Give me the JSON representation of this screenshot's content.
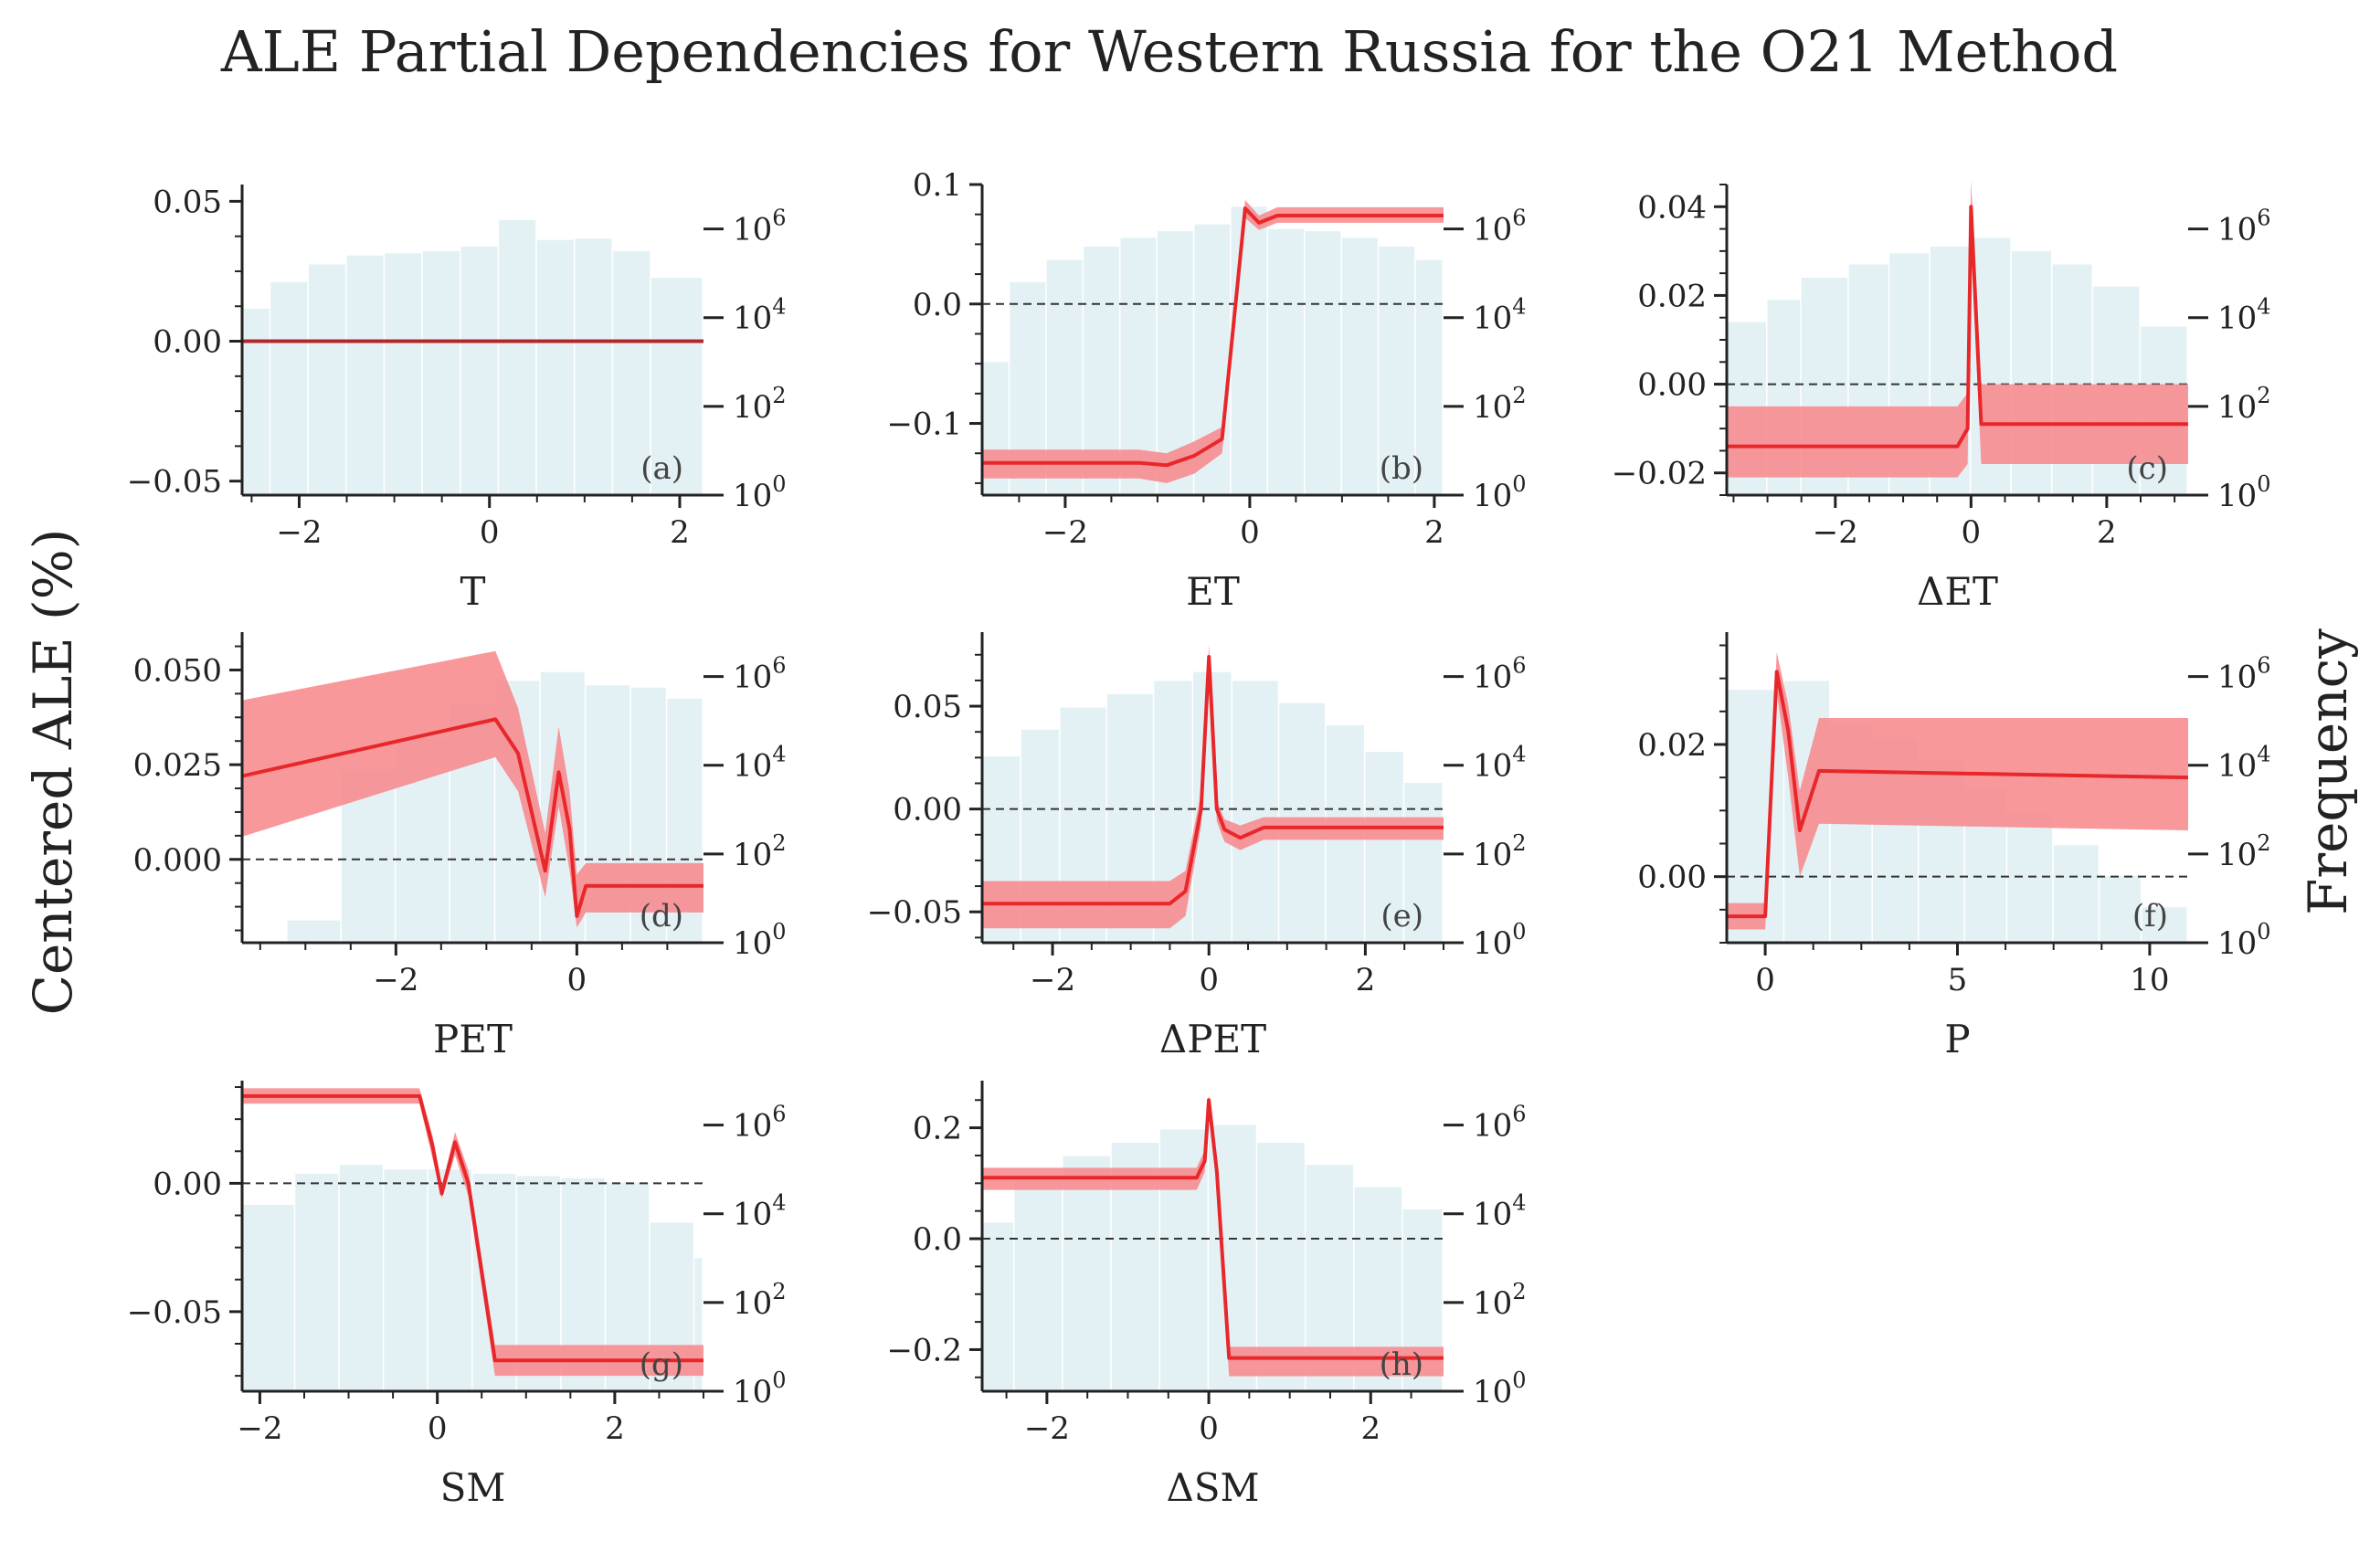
{
  "figure": {
    "title": "ALE Partial Dependencies for Western Russia for the O21 Method",
    "ylabel": "Centered ALE (%)",
    "y2label": "Frequency",
    "colors": {
      "line": "#e8272b",
      "band": "#f7868a",
      "hist": "#e3f1f5",
      "axis": "#222222",
      "zero": "#333333"
    }
  },
  "chart_data": [
    {
      "type": "line",
      "panel_label": "(a)",
      "xlabel": "T",
      "xlim": [
        -2.6,
        2.25
      ],
      "ylim": [
        -0.055,
        0.056
      ],
      "xticks": [
        -2,
        0,
        2
      ],
      "xtick_labels": [
        "−2",
        "0",
        "2"
      ],
      "yticks": [
        -0.05,
        0.0,
        0.05
      ],
      "ytick_labels": [
        "−0.05",
        "0.00",
        "0.05"
      ],
      "y2ticks": [
        0,
        2,
        4,
        6
      ],
      "y2tick_labels": [
        "10",
        "10",
        "10",
        "10"
      ],
      "y2tick_exponents": [
        "0",
        "2",
        "4",
        "6"
      ],
      "zero_line": false,
      "hist": {
        "edges": [
          -2.6,
          -2.3,
          -1.9,
          -1.5,
          -1.1,
          -0.7,
          -0.3,
          0.1,
          0.5,
          0.9,
          1.3,
          1.7,
          2.25
        ],
        "log10_counts": [
          4.2,
          4.8,
          5.2,
          5.4,
          5.45,
          5.5,
          5.6,
          6.2,
          5.75,
          5.78,
          5.5,
          4.9
        ]
      },
      "series": [
        {
          "x": [
            -2.6,
            2.25
          ],
          "y": [
            0.0,
            0.0
          ],
          "lower": [
            0.0,
            0.0
          ],
          "upper": [
            0.0,
            0.0
          ],
          "color": "#b3262a"
        }
      ]
    },
    {
      "type": "line",
      "panel_label": "(b)",
      "xlabel": "ET",
      "xlim": [
        -2.9,
        2.1
      ],
      "ylim": [
        -0.16,
        0.1
      ],
      "xticks": [
        -2,
        0,
        2
      ],
      "xtick_labels": [
        "−2",
        "0",
        "2"
      ],
      "yticks": [
        -0.1,
        0.0,
        0.1
      ],
      "ytick_labels": [
        "−0.1",
        "0.0",
        "0.1"
      ],
      "y2ticks": [
        0,
        2,
        4,
        6
      ],
      "y2tick_labels": [
        "10",
        "10",
        "10",
        "10"
      ],
      "y2tick_exponents": [
        "0",
        "2",
        "4",
        "6"
      ],
      "zero_line": true,
      "hist": {
        "edges": [
          -2.9,
          -2.6,
          -2.2,
          -1.8,
          -1.4,
          -1.0,
          -0.6,
          -0.2,
          0.2,
          0.6,
          1.0,
          1.4,
          1.8,
          2.1
        ],
        "log10_counts": [
          3.0,
          4.8,
          5.3,
          5.6,
          5.8,
          5.95,
          6.1,
          6.5,
          6.0,
          5.95,
          5.8,
          5.6,
          5.3
        ]
      },
      "series": [
        {
          "x": [
            -2.9,
            -1.2,
            -0.9,
            -0.6,
            -0.3,
            -0.05,
            0.1,
            0.3,
            2.1
          ],
          "y": [
            -0.133,
            -0.133,
            -0.135,
            -0.127,
            -0.113,
            0.08,
            0.068,
            0.074,
            0.074
          ],
          "lower": [
            -0.146,
            -0.146,
            -0.15,
            -0.142,
            -0.125,
            0.072,
            0.062,
            0.068,
            0.068
          ],
          "upper": [
            -0.122,
            -0.122,
            -0.125,
            -0.115,
            -0.103,
            0.087,
            0.074,
            0.081,
            0.081
          ],
          "color": "#e8272b"
        }
      ]
    },
    {
      "type": "line",
      "panel_label": "(c)",
      "xlabel": "ΔET",
      "xlim": [
        -3.6,
        3.2
      ],
      "ylim": [
        -0.025,
        0.045
      ],
      "xticks": [
        -2,
        0,
        2
      ],
      "xtick_labels": [
        "−2",
        "0",
        "2"
      ],
      "yticks": [
        -0.02,
        0.0,
        0.02,
        0.04
      ],
      "ytick_labels": [
        "−0.02",
        "0.00",
        "0.02",
        "0.04"
      ],
      "y2ticks": [
        0,
        2,
        4,
        6
      ],
      "y2tick_labels": [
        "10",
        "10",
        "10",
        "10"
      ],
      "y2tick_exponents": [
        "0",
        "2",
        "4",
        "6"
      ],
      "zero_line": true,
      "hist": {
        "edges": [
          -3.6,
          -3.0,
          -2.5,
          -1.8,
          -1.2,
          -0.6,
          0.0,
          0.6,
          1.2,
          1.8,
          2.5,
          3.2
        ],
        "log10_counts": [
          3.9,
          4.4,
          4.9,
          5.2,
          5.45,
          5.6,
          5.8,
          5.5,
          5.2,
          4.7,
          3.8
        ]
      },
      "series": [
        {
          "x": [
            -3.6,
            -0.2,
            -0.05,
            0.0,
            0.15,
            0.3,
            3.2
          ],
          "y": [
            -0.014,
            -0.014,
            -0.01,
            0.04,
            -0.009,
            -0.009,
            -0.009
          ],
          "lower": [
            -0.021,
            -0.021,
            -0.018,
            0.032,
            -0.018,
            -0.018,
            -0.018
          ],
          "upper": [
            -0.005,
            -0.005,
            -0.002,
            0.046,
            0.0,
            0.0,
            0.0
          ],
          "color": "#e8272b"
        }
      ]
    },
    {
      "type": "line",
      "panel_label": "(d)",
      "xlabel": "PET",
      "xlim": [
        -3.7,
        1.4
      ],
      "ylim": [
        -0.022,
        0.06
      ],
      "xticks": [
        -2,
        0
      ],
      "xtick_labels": [
        "−2",
        "0"
      ],
      "yticks": [
        0.0,
        0.025,
        0.05
      ],
      "ytick_labels": [
        "0.000",
        "0.025",
        "0.050"
      ],
      "y2ticks": [
        0,
        2,
        4,
        6
      ],
      "y2tick_labels": [
        "10",
        "10",
        "10",
        "10"
      ],
      "y2tick_exponents": [
        "0",
        "2",
        "4",
        "6"
      ],
      "zero_line": true,
      "hist": {
        "edges": [
          -3.7,
          -3.2,
          -2.6,
          -2.0,
          -1.4,
          -0.9,
          -0.4,
          0.1,
          0.6,
          1.0,
          1.4
        ],
        "log10_counts": [
          0.0,
          0.5,
          3.9,
          4.6,
          5.4,
          5.9,
          6.1,
          5.8,
          5.75,
          5.5
        ]
      },
      "series": [
        {
          "x": [
            -3.7,
            -0.9,
            -0.65,
            -0.35,
            -0.2,
            -0.08,
            0.0,
            0.1,
            1.4
          ],
          "y": [
            0.022,
            0.037,
            0.028,
            -0.003,
            0.023,
            0.008,
            -0.015,
            -0.007,
            -0.007
          ],
          "lower": [
            0.006,
            0.027,
            0.018,
            -0.01,
            0.014,
            -0.003,
            -0.018,
            -0.014,
            -0.014
          ],
          "upper": [
            0.042,
            0.055,
            0.04,
            0.007,
            0.035,
            0.018,
            -0.004,
            -0.001,
            -0.001
          ],
          "color": "#e8272b"
        }
      ]
    },
    {
      "type": "line",
      "panel_label": "(e)",
      "xlabel": "ΔPET",
      "xlim": [
        -2.9,
        3.0
      ],
      "ylim": [
        -0.065,
        0.086
      ],
      "xticks": [
        -2,
        0,
        2
      ],
      "xtick_labels": [
        "−2",
        "0",
        "2"
      ],
      "yticks": [
        -0.05,
        0.0,
        0.05
      ],
      "ytick_labels": [
        "−0.05",
        "0.00",
        "0.05"
      ],
      "y2ticks": [
        0,
        2,
        4,
        6
      ],
      "y2tick_labels": [
        "10",
        "10",
        "10",
        "10"
      ],
      "y2tick_exponents": [
        "0",
        "2",
        "4",
        "6"
      ],
      "zero_line": true,
      "hist": {
        "edges": [
          -2.9,
          -2.4,
          -1.9,
          -1.3,
          -0.7,
          -0.2,
          0.3,
          0.9,
          1.5,
          2.0,
          2.5,
          3.0
        ],
        "log10_counts": [
          4.2,
          4.8,
          5.3,
          5.6,
          5.9,
          6.1,
          5.9,
          5.4,
          4.9,
          4.3,
          3.6
        ]
      },
      "series": [
        {
          "x": [
            -2.9,
            -0.5,
            -0.3,
            -0.1,
            0.0,
            0.1,
            0.2,
            0.4,
            0.7,
            3.0
          ],
          "y": [
            -0.046,
            -0.046,
            -0.04,
            0.0,
            0.074,
            0.0,
            -0.01,
            -0.014,
            -0.009,
            -0.009
          ],
          "lower": [
            -0.058,
            -0.058,
            -0.052,
            -0.008,
            0.064,
            -0.006,
            -0.016,
            -0.02,
            -0.015,
            -0.015
          ],
          "upper": [
            -0.035,
            -0.035,
            -0.03,
            0.008,
            0.08,
            0.004,
            -0.005,
            -0.008,
            -0.004,
            -0.004
          ],
          "color": "#e8272b"
        }
      ]
    },
    {
      "type": "line",
      "panel_label": "(f)",
      "xlabel": "P",
      "xlim": [
        -1.0,
        11.0
      ],
      "ylim": [
        -0.01,
        0.037
      ],
      "xticks": [
        0,
        5,
        10
      ],
      "xtick_labels": [
        "0",
        "5",
        "10"
      ],
      "yticks": [
        0.0,
        0.02
      ],
      "ytick_labels": [
        "0.00",
        "0.02"
      ],
      "y2ticks": [
        0,
        2,
        4,
        6
      ],
      "y2tick_labels": [
        "10",
        "10",
        "10",
        "10"
      ],
      "y2tick_exponents": [
        "0",
        "2",
        "4",
        "6"
      ],
      "zero_line": true,
      "hist": {
        "edges": [
          -1.0,
          0.5,
          1.7,
          2.8,
          4.0,
          5.2,
          6.3,
          7.5,
          8.7,
          9.8,
          11.0
        ],
        "log10_counts": [
          5.7,
          5.9,
          4.9,
          4.6,
          4.1,
          3.5,
          2.9,
          2.2,
          1.5,
          0.8
        ]
      },
      "series": [
        {
          "x": [
            -1.0,
            0.0,
            0.3,
            0.6,
            0.9,
            1.4,
            11.0
          ],
          "y": [
            -0.006,
            -0.006,
            0.031,
            0.022,
            0.007,
            0.016,
            0.015
          ],
          "lower": [
            -0.008,
            -0.008,
            0.028,
            0.015,
            0.0,
            0.008,
            0.007
          ],
          "upper": [
            -0.004,
            -0.004,
            0.034,
            0.026,
            0.013,
            0.024,
            0.024
          ],
          "color": "#e8272b"
        }
      ]
    },
    {
      "type": "line",
      "panel_label": "(g)",
      "xlabel": "SM",
      "xlim": [
        -2.2,
        3.0
      ],
      "ylim": [
        -0.081,
        0.04
      ],
      "xticks": [
        -2,
        0,
        2
      ],
      "xtick_labels": [
        "−2",
        "0",
        "2"
      ],
      "yticks": [
        -0.05,
        0.0
      ],
      "ytick_labels": [
        "−0.05",
        "0.00"
      ],
      "y2ticks": [
        0,
        2,
        4,
        6
      ],
      "y2tick_labels": [
        "10",
        "10",
        "10",
        "10"
      ],
      "y2tick_exponents": [
        "0",
        "2",
        "4",
        "6"
      ],
      "zero_line": true,
      "hist": {
        "edges": [
          -2.2,
          -1.6,
          -1.1,
          -0.6,
          -0.1,
          0.4,
          0.9,
          1.4,
          1.9,
          2.4,
          2.9,
          3.0
        ],
        "log10_counts": [
          4.2,
          4.9,
          5.1,
          5.0,
          5.0,
          4.9,
          4.85,
          4.8,
          4.7,
          3.8,
          3.0
        ]
      },
      "series": [
        {
          "x": [
            -2.2,
            -0.2,
            -0.05,
            0.05,
            0.2,
            0.35,
            0.65,
            3.0
          ],
          "y": [
            0.034,
            0.034,
            0.014,
            -0.004,
            0.016,
            0.0,
            -0.069,
            -0.069
          ],
          "lower": [
            0.031,
            0.031,
            0.009,
            -0.006,
            0.011,
            -0.005,
            -0.075,
            -0.075
          ],
          "upper": [
            0.037,
            0.037,
            0.018,
            -0.001,
            0.02,
            0.005,
            -0.063,
            -0.063
          ],
          "color": "#e8272b"
        }
      ]
    },
    {
      "type": "line",
      "panel_label": "(h)",
      "xlabel": "ΔSM",
      "xlim": [
        -2.8,
        2.9
      ],
      "ylim": [
        -0.275,
        0.285
      ],
      "xticks": [
        -2,
        0,
        2
      ],
      "xtick_labels": [
        "−2",
        "0",
        "2"
      ],
      "yticks": [
        -0.2,
        0.0,
        0.2
      ],
      "ytick_labels": [
        "−0.2",
        "0.0",
        "0.2"
      ],
      "y2ticks": [
        0,
        2,
        4,
        6
      ],
      "y2tick_labels": [
        "10",
        "10",
        "10",
        "10"
      ],
      "y2tick_exponents": [
        "0",
        "2",
        "4",
        "6"
      ],
      "zero_line": true,
      "hist": {
        "edges": [
          -2.8,
          -2.4,
          -1.8,
          -1.2,
          -0.6,
          0.0,
          0.6,
          1.2,
          1.8,
          2.4,
          2.9
        ],
        "log10_counts": [
          3.8,
          4.8,
          5.3,
          5.6,
          5.9,
          6.0,
          5.6,
          5.1,
          4.6,
          4.1
        ]
      },
      "series": [
        {
          "x": [
            -2.8,
            -0.15,
            -0.05,
            0.0,
            0.1,
            0.25,
            2.9
          ],
          "y": [
            0.11,
            0.11,
            0.14,
            0.25,
            0.12,
            -0.215,
            -0.215
          ],
          "lower": [
            0.088,
            0.088,
            0.12,
            0.24,
            0.1,
            -0.248,
            -0.248
          ],
          "upper": [
            0.128,
            0.128,
            0.16,
            0.26,
            0.14,
            -0.195,
            -0.195
          ],
          "color": "#e8272b"
        }
      ]
    }
  ]
}
